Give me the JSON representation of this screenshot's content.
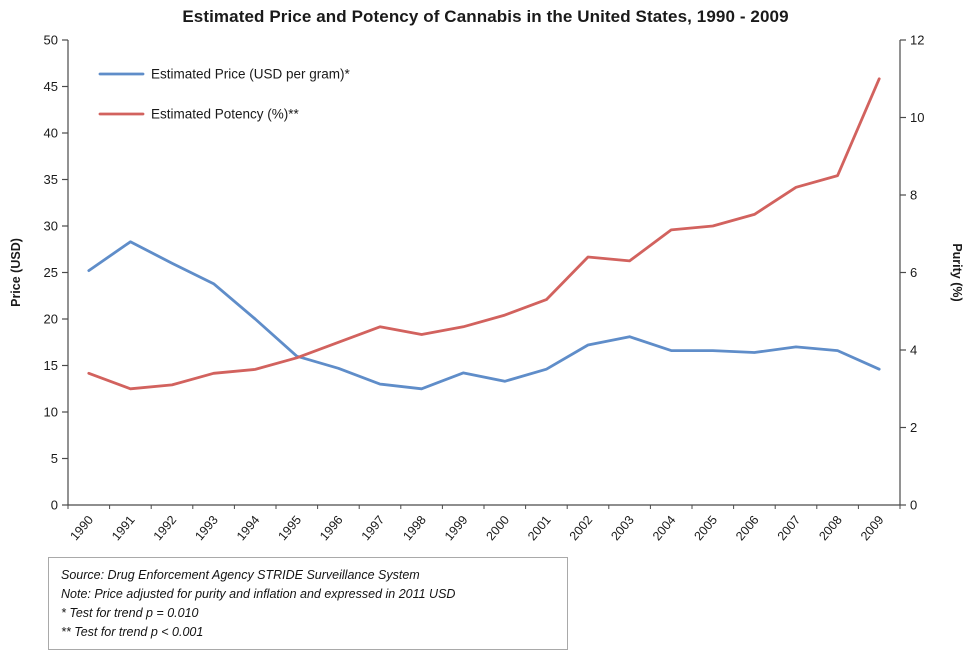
{
  "chart_data": {
    "type": "line",
    "title": "Estimated Price and Potency of Cannabis in the United States, 1990 - 2009",
    "categories": [
      "1990",
      "1991",
      "1992",
      "1993",
      "1994",
      "1995",
      "1996",
      "1997",
      "1998",
      "1999",
      "2000",
      "2001",
      "2002",
      "2003",
      "2004",
      "2005",
      "2006",
      "2007",
      "2008",
      "2009"
    ],
    "series": [
      {
        "name": "Estimated Price (USD per gram)*",
        "axis": "left",
        "color": "#5f8dc9",
        "values": [
          25.2,
          28.3,
          26.0,
          23.8,
          20.0,
          16.0,
          14.7,
          13.0,
          12.5,
          14.2,
          13.3,
          14.6,
          17.2,
          18.1,
          16.6,
          16.6,
          16.4,
          17.0,
          16.6,
          14.6
        ]
      },
      {
        "name": "Estimated Potency (%)**",
        "axis": "right",
        "color": "#d2625e",
        "values": [
          3.4,
          3.0,
          3.1,
          3.4,
          3.5,
          3.8,
          4.2,
          4.6,
          4.4,
          4.6,
          4.9,
          5.3,
          6.4,
          6.3,
          7.1,
          7.2,
          7.5,
          8.2,
          8.5,
          11.0
        ]
      }
    ],
    "left_axis": {
      "label": "Price (USD)",
      "min": 0,
      "max": 50,
      "step": 5
    },
    "right_axis": {
      "label": "Purity (%)",
      "min": 0,
      "max": 12,
      "step": 2
    },
    "grid": false,
    "legend_position": "top-left-inside"
  },
  "footnote": {
    "lines": [
      "Source: Drug Enforcement Agency STRIDE Surveillance System",
      "Note: Price adjusted for purity and inflation and expressed in 2011 USD",
      "* Test for trend p = 0.010",
      "** Test for trend p < 0.001"
    ]
  }
}
